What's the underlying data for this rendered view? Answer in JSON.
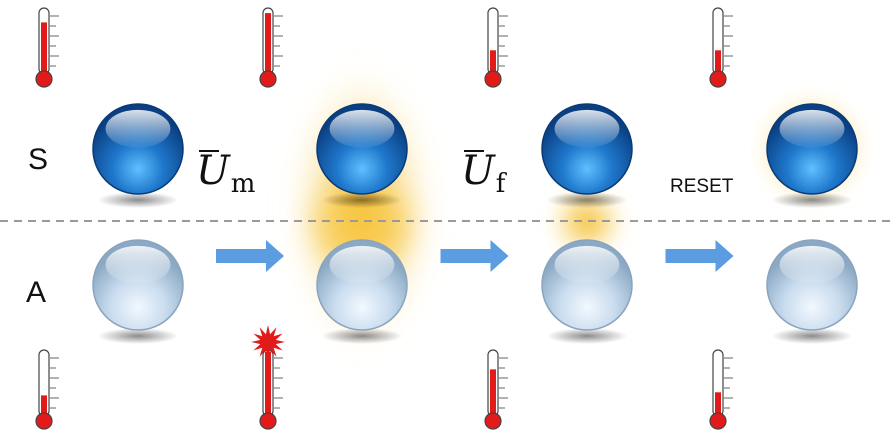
{
  "labels": {
    "system": "S",
    "ancilla": "A",
    "op_measure_symbol": "U",
    "op_measure_sub": "m",
    "op_feedback_symbol": "U",
    "op_feedback_sub": "f",
    "reset": "RESET"
  },
  "stages": [
    {
      "s_temp_level": 0.8,
      "a_temp_level": 0.3,
      "a_burst": false,
      "glow": "none"
    },
    {
      "s_temp_level": 0.95,
      "a_temp_level": 1.0,
      "a_burst": true,
      "glow": "large"
    },
    {
      "s_temp_level": 0.35,
      "a_temp_level": 0.72,
      "a_burst": false,
      "glow": "small"
    },
    {
      "s_temp_level": 0.35,
      "a_temp_level": 0.35,
      "a_burst": false,
      "glow": "halo"
    }
  ],
  "colors": {
    "mercury": "#e21a1a",
    "arrow": "#5b9de0",
    "divider": "#9a9a9a",
    "glow": "#f7c233",
    "sphere_dark": "#0d4a94",
    "sphere_light": "#cfe2f2"
  }
}
